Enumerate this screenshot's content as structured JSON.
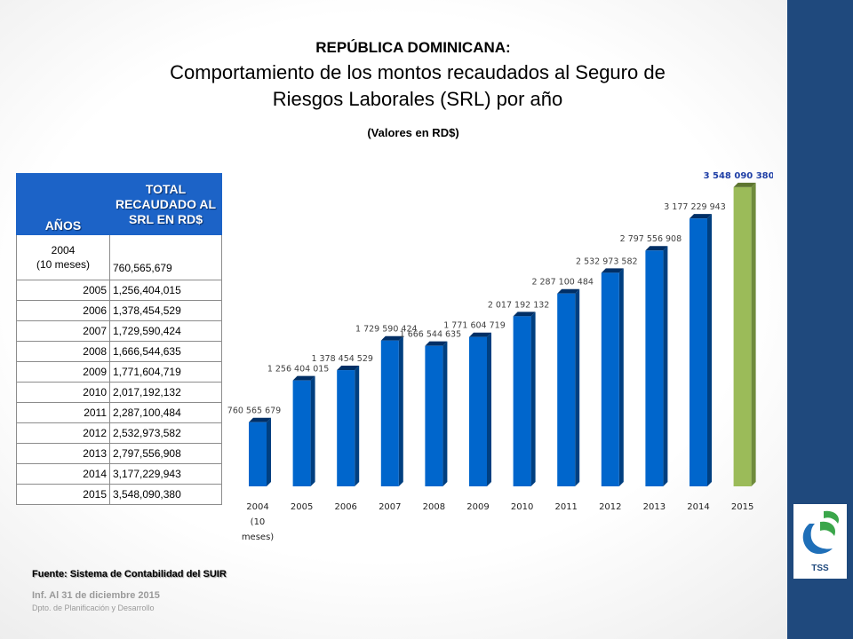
{
  "header": {
    "country": "REPÚBLICA DOMINICANA:",
    "title": "Comportamiento de los montos recaudados al Seguro de Riesgos Laborales (SRL) por año",
    "subtitle": "(Valores en RD$)"
  },
  "table": {
    "col_year": "AÑOS",
    "col_total": "TOTAL RECAUDADO AL SRL EN RD$",
    "rows": [
      {
        "year": "2004",
        "note": "(10 meses)",
        "value": "760,565,679"
      },
      {
        "year": "2005",
        "value": "1,256,404,015"
      },
      {
        "year": "2006",
        "value": "1,378,454,529"
      },
      {
        "year": "2007",
        "value": "1,729,590,424"
      },
      {
        "year": "2008",
        "value": "1,666,544,635"
      },
      {
        "year": "2009",
        "value": "1,771,604,719"
      },
      {
        "year": "2010",
        "value": "2,017,192,132"
      },
      {
        "year": "2011",
        "value": "2,287,100,484"
      },
      {
        "year": "2012",
        "value": "2,532,973,582"
      },
      {
        "year": "2013",
        "value": "2,797,556,908"
      },
      {
        "year": "2014",
        "value": "3,177,229,943"
      },
      {
        "year": "2015",
        "value": "3,548,090,380"
      }
    ]
  },
  "chart_data": {
    "type": "bar",
    "title": "",
    "xlabel": "",
    "ylabel": "",
    "categories": [
      "2004 (10 meses)",
      "2005",
      "2006",
      "2007",
      "2008",
      "2009",
      "2010",
      "2011",
      "2012",
      "2013",
      "2014",
      "2015"
    ],
    "values": [
      760565679,
      1256404015,
      1378454529,
      1729590424,
      1666544635,
      1771604719,
      2017192132,
      2287100484,
      2532973582,
      2797556908,
      3177229943,
      3548090380
    ],
    "data_labels": [
      "760 565 679",
      "1 256 404 015",
      "1 378 454 529",
      "1 729 590 424",
      "1 666 544 635",
      "1 771 604 719",
      "2 017 192 132",
      "2 287 100 484",
      "2 532 973 582",
      "2 797 556 908",
      "3 177 229 943",
      "3 548 090 380"
    ],
    "ylim": [
      0,
      3600000000
    ],
    "grid": false,
    "legend": "none",
    "colors": {
      "bar": "#0066cc",
      "bar_last": "#9bbb59",
      "label": "#404040",
      "label_last": "#1f3fa6"
    }
  },
  "footer": {
    "source": "Fuente: Sistema de Contabilidad del SUIR",
    "info": "Inf. Al 31 de diciembre 2015",
    "dept": "Dpto. de Planificación y Desarrollo"
  },
  "logo": {
    "text": "TSS",
    "icon": "tss-logo-icon"
  }
}
